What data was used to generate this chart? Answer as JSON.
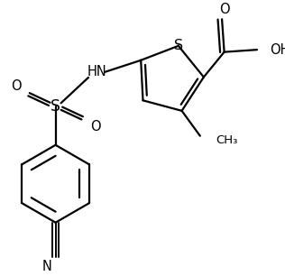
{
  "bg_color": "#ffffff",
  "line_color": "#000000",
  "bond_lw": 1.6,
  "font_size": 9.5,
  "figsize": [
    3.16,
    3.06
  ],
  "dpi": 100,
  "xlim": [
    -1.0,
    4.5
  ],
  "ylim": [
    -3.5,
    2.5
  ]
}
